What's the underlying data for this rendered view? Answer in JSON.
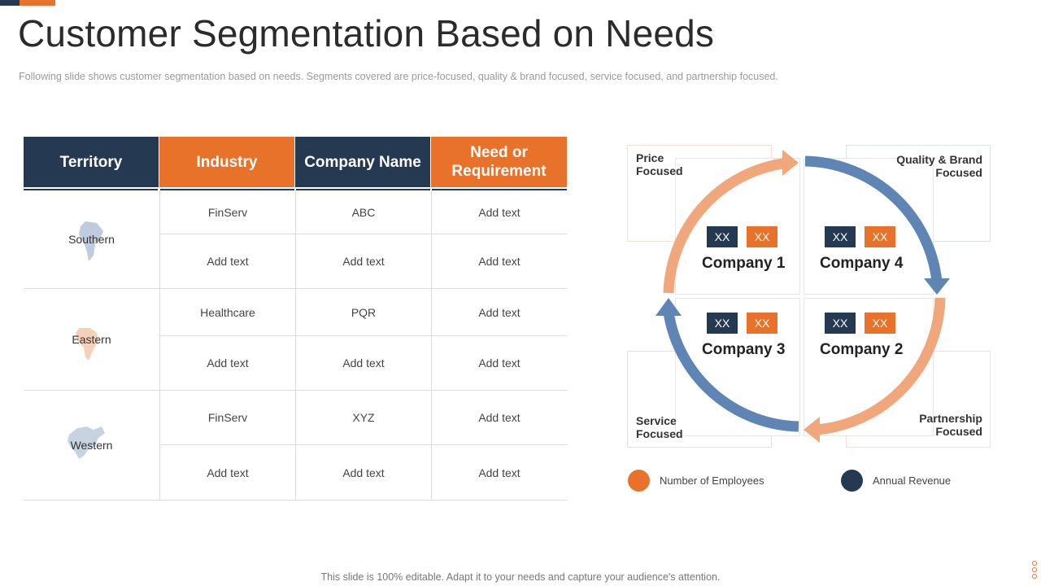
{
  "page": {
    "title": "Customer Segmentation Based on Needs",
    "subtitle": "Following slide shows customer segmentation based on needs. Segments covered are price-focused, quality & brand focused, service focused, and partnership focused.",
    "footer": "This slide is 100% editable. Adapt it to your needs and capture your audience's attention."
  },
  "colors": {
    "dark": "#253a52",
    "orange": "#e8722a",
    "light_orange": "#f0a77b",
    "steel_blue": "#5e85b4"
  },
  "table": {
    "headers": [
      "Territory",
      "Industry",
      "Company Name",
      "Need or Requirement"
    ],
    "groups": [
      {
        "territory": "Southern",
        "map_icon": "south-america-map-icon",
        "rows": [
          [
            "FinServ",
            "ABC",
            "Add text"
          ],
          [
            "Add text",
            "Add text",
            "Add text"
          ]
        ]
      },
      {
        "territory": "Eastern",
        "map_icon": "africa-map-icon",
        "rows": [
          [
            "Healthcare",
            "PQR",
            "Add text"
          ],
          [
            "Add text",
            "Add text",
            "Add text"
          ]
        ]
      },
      {
        "territory": "Western",
        "map_icon": "north-america-map-icon",
        "rows": [
          [
            "FinServ",
            "XYZ",
            "Add text"
          ],
          [
            "Add text",
            "Add text",
            "Add text"
          ]
        ]
      }
    ]
  },
  "diagram": {
    "quadrants": {
      "price": "Price\nFocused",
      "quality": "Quality & Brand\nFocused",
      "service": "Service\nFocused",
      "partnership": "Partnership\nFocused"
    },
    "companies": [
      {
        "name": "Company 1",
        "employees": "XX",
        "revenue": "XX"
      },
      {
        "name": "Company 4",
        "employees": "XX",
        "revenue": "XX"
      },
      {
        "name": "Company 3",
        "employees": "XX",
        "revenue": "XX"
      },
      {
        "name": "Company 2",
        "employees": "XX",
        "revenue": "XX"
      }
    ]
  },
  "legend": {
    "employees": "Number of Employees",
    "revenue": "Annual Revenue"
  }
}
